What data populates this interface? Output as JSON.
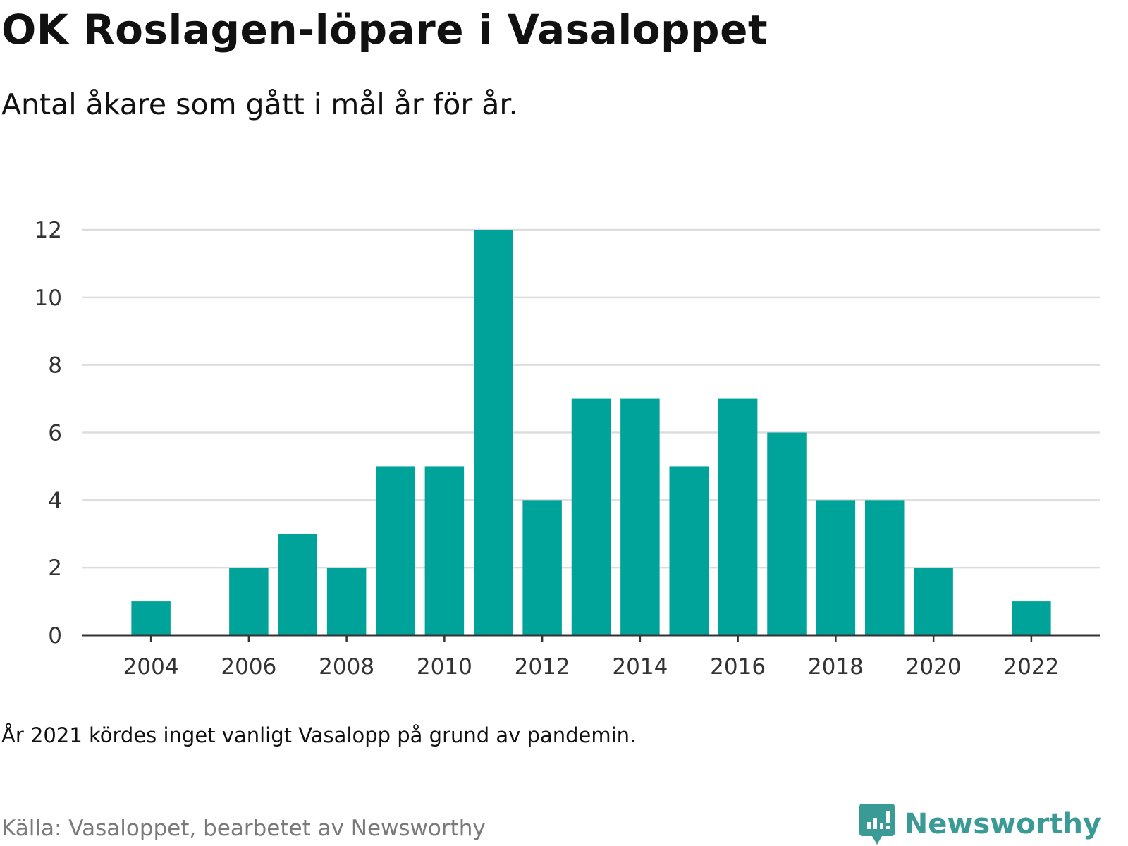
{
  "title": "OK Roslagen-löpare i Vasaloppet",
  "subtitle": "Antal åkare som gått i mål år för år.",
  "note": "År 2021 kördes inget vanligt Vasalopp på grund av pandemin.",
  "source": "Källa: Vasaloppet, bearbetet av Newsworthy",
  "brand": {
    "name": "Newsworthy",
    "color": "#3a9a96"
  },
  "chart_data": {
    "type": "bar",
    "title": "OK Roslagen-löpare i Vasaloppet",
    "subtitle": "Antal åkare som gått i mål år för år.",
    "x": [
      2004,
      2005,
      2006,
      2007,
      2008,
      2009,
      2010,
      2011,
      2012,
      2013,
      2014,
      2015,
      2016,
      2017,
      2018,
      2019,
      2020,
      2021,
      2022
    ],
    "values": [
      1,
      0,
      2,
      3,
      2,
      5,
      5,
      12,
      4,
      7,
      7,
      5,
      7,
      6,
      4,
      4,
      2,
      0,
      1
    ],
    "xticks": [
      "2004",
      "2006",
      "2008",
      "2010",
      "2012",
      "2014",
      "2016",
      "2018",
      "2020",
      "2022"
    ],
    "yticks": [
      "0",
      "2",
      "4",
      "6",
      "8",
      "10",
      "12"
    ],
    "ylim": [
      0,
      12
    ],
    "xlim": [
      2002.6,
      2023.4
    ],
    "grid": true,
    "bar_color": "#00a39a",
    "xlabel": "",
    "ylabel": ""
  }
}
